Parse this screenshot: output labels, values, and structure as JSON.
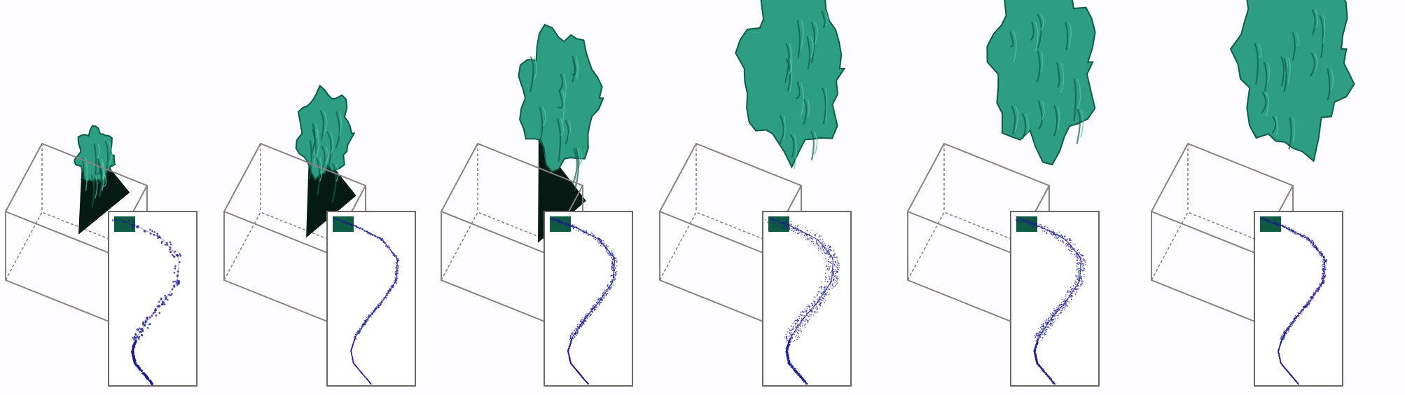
{
  "figure": {
    "panel_count": 6,
    "colors": {
      "background": "#fdfdff",
      "box_edge": "#8a8180",
      "surface": "#2e9e82",
      "surface_dark": "#0f5b47",
      "surface_light": "#53c3a4",
      "slice_plane": "#041a12",
      "inset_border": "#6e6565",
      "inset_marker": "#0e5a43",
      "trace": "#1c1c8c"
    },
    "panels": [
      {
        "step": 1,
        "surface_extent": 0.18,
        "spread": 0.55,
        "dense": 0.25
      },
      {
        "step": 2,
        "surface_extent": 0.35,
        "spread": 0.2,
        "dense": 0.45
      },
      {
        "step": 3,
        "surface_extent": 0.62,
        "spread": 0.35,
        "dense": 0.8
      },
      {
        "step": 4,
        "surface_extent": 0.85,
        "spread": 0.9,
        "dense": 0.95
      },
      {
        "step": 5,
        "surface_extent": 0.9,
        "spread": 0.6,
        "dense": 0.9
      },
      {
        "step": 6,
        "surface_extent": 1.0,
        "spread": 0.25,
        "dense": 0.85
      }
    ]
  }
}
